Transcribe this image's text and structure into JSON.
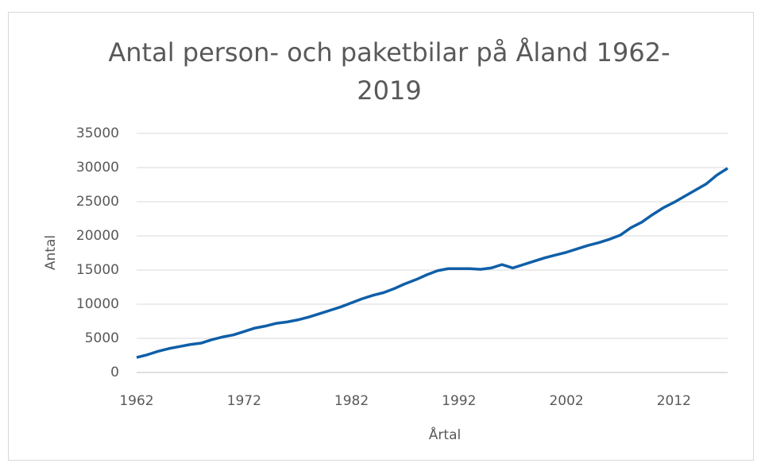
{
  "chart_data": {
    "type": "line",
    "title": "Antal person- och paketbilar på Åland 1962-2019",
    "x_label": "Årtal",
    "y_label": "Antal",
    "x": [
      1962,
      1963,
      1964,
      1965,
      1966,
      1967,
      1968,
      1969,
      1970,
      1971,
      1972,
      1973,
      1974,
      1975,
      1976,
      1977,
      1978,
      1979,
      1980,
      1981,
      1982,
      1983,
      1984,
      1985,
      1986,
      1987,
      1988,
      1989,
      1990,
      1991,
      1992,
      1993,
      1994,
      1995,
      1996,
      1997,
      1998,
      1999,
      2000,
      2001,
      2002,
      2003,
      2004,
      2005,
      2006,
      2007,
      2008,
      2009,
      2010,
      2011,
      2012,
      2013,
      2014,
      2015,
      2016,
      2017
    ],
    "series": [
      {
        "name": "Antal",
        "color": "#0f5fa8",
        "values": [
          2200,
          2600,
          3100,
          3500,
          3800,
          4100,
          4300,
          4800,
          5200,
          5500,
          6000,
          6500,
          6800,
          7200,
          7400,
          7700,
          8100,
          8600,
          9100,
          9600,
          10200,
          10800,
          11300,
          11700,
          12300,
          13000,
          13600,
          14300,
          14900,
          15200,
          15200,
          15200,
          15100,
          15300,
          15800,
          15300,
          15800,
          16300,
          16800,
          17200,
          17600,
          18100,
          18600,
          19000,
          19500,
          20100,
          21200,
          22000,
          23100,
          24100,
          24900,
          25800,
          26700,
          27600,
          28900,
          29900
        ]
      }
    ],
    "xlim": [
      1962,
      2017
    ],
    "xticks": [
      1962,
      1972,
      1982,
      1992,
      2002,
      2012
    ],
    "ylim": [
      0,
      35000
    ],
    "yticks": [
      0,
      5000,
      10000,
      15000,
      20000,
      25000,
      30000,
      35000
    ],
    "grid": true
  }
}
